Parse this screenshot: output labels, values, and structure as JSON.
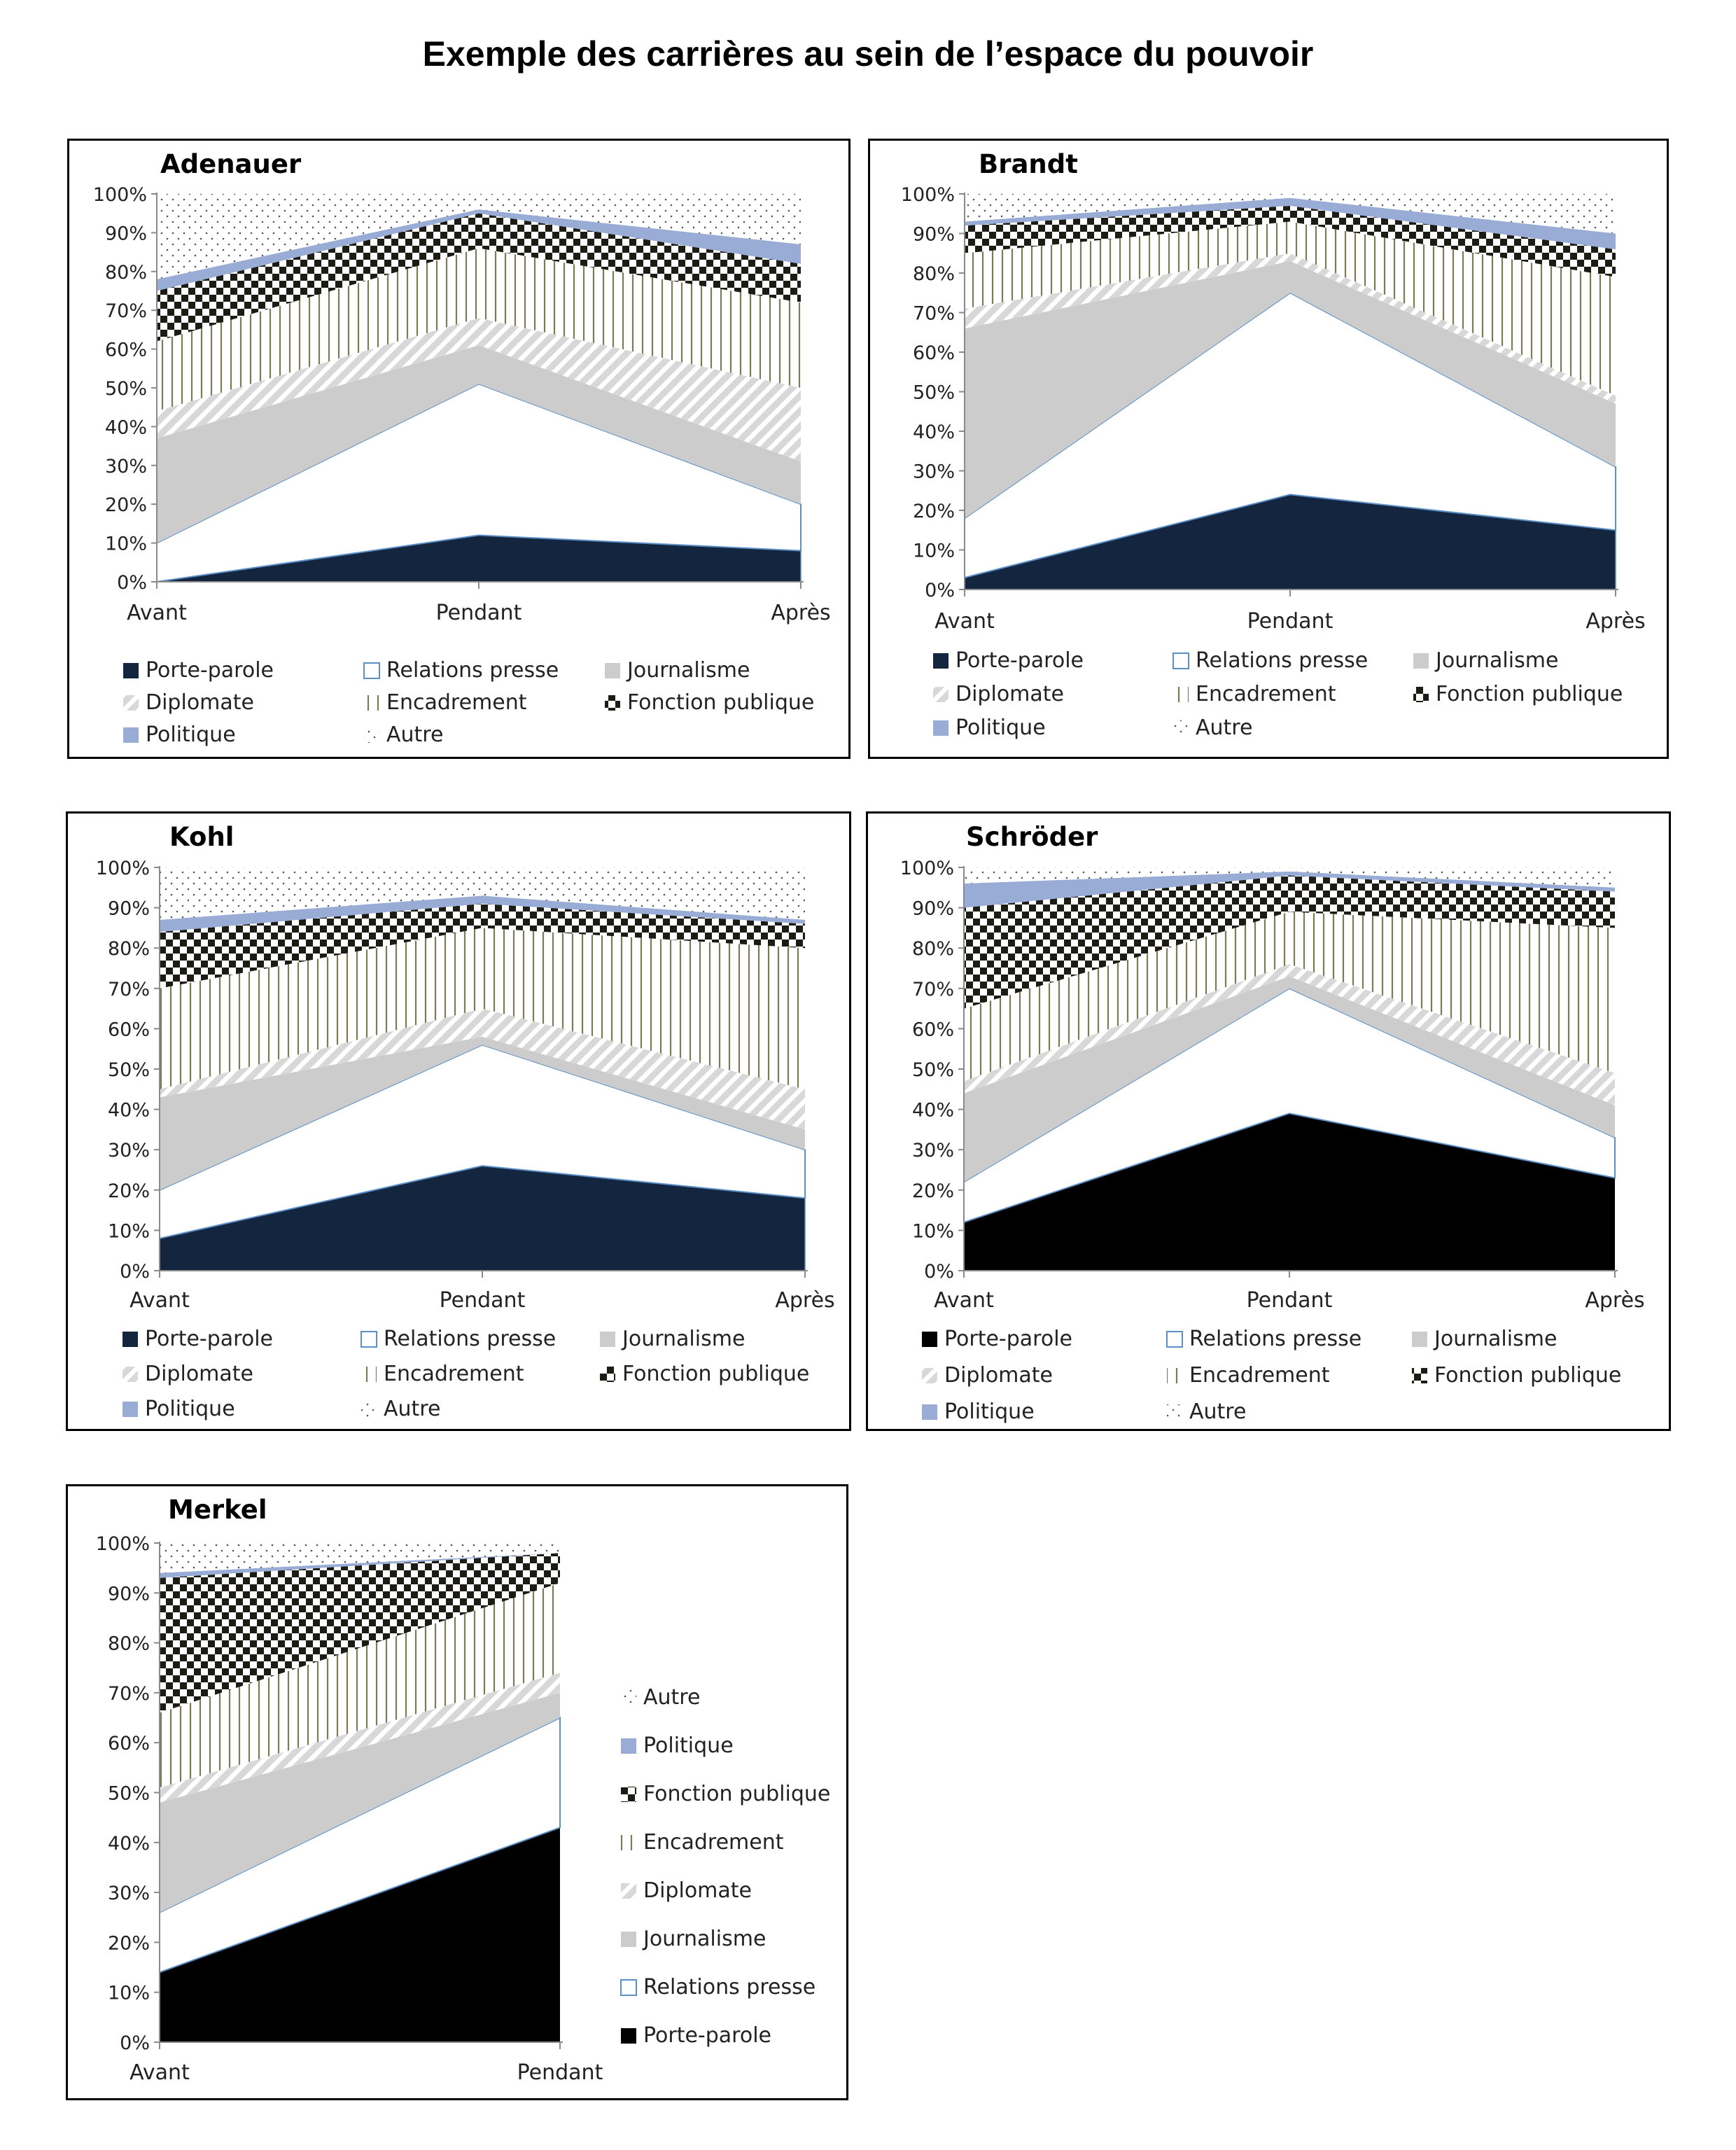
{
  "page_title": "Exemple des carrières au sein de l’espace du pouvoir",
  "colors": {
    "porte_parole": "#14253f",
    "porte_parole_black": "#000000",
    "relations_presse": "#ffffff",
    "relations_presse_edge": "#5b8fc6",
    "journalisme": "#cccccc",
    "diplomate": "#d8d8d8",
    "encadrement": "#7d7a55",
    "fonction_publique": "#1c1c14",
    "politique": "#98acd6",
    "autre": "#555555"
  },
  "chart_data": [
    {
      "id": "adenauer",
      "type": "area",
      "stacked": true,
      "title": "Adenauer",
      "categories": [
        "Avant",
        "Pendant",
        "Après"
      ],
      "ylim": [
        0,
        100
      ],
      "yticks": [
        "0%",
        "10%",
        "20%",
        "30%",
        "40%",
        "50%",
        "60%",
        "70%",
        "80%",
        "90%",
        "100%"
      ],
      "legend_position": "bottom",
      "legend": [
        "Porte-parole",
        "Relations presse",
        "Journalisme",
        "Diplomate",
        "Encadrement",
        "Fonction publique",
        "Politique",
        "Autre"
      ],
      "series": [
        {
          "name": "Porte-parole",
          "key": "porte_parole",
          "values": [
            0,
            12,
            8
          ]
        },
        {
          "name": "Relations presse",
          "key": "relations_presse",
          "values": [
            10,
            39,
            12
          ]
        },
        {
          "name": "Journalisme",
          "key": "journalisme",
          "values": [
            27,
            10,
            11
          ]
        },
        {
          "name": "Diplomate",
          "key": "diplomate",
          "values": [
            7,
            7,
            19
          ]
        },
        {
          "name": "Encadrement",
          "key": "encadrement",
          "values": [
            18,
            18,
            22
          ]
        },
        {
          "name": "Fonction publique",
          "key": "fonction_publique",
          "values": [
            13,
            9,
            10
          ]
        },
        {
          "name": "Politique",
          "key": "politique",
          "values": [
            3,
            1,
            5
          ]
        },
        {
          "name": "Autre",
          "key": "autre",
          "values": [
            22,
            4,
            13
          ]
        }
      ]
    },
    {
      "id": "brandt",
      "type": "area",
      "stacked": true,
      "title": "Brandt",
      "categories": [
        "Avant",
        "Pendant",
        "Après"
      ],
      "ylim": [
        0,
        100
      ],
      "yticks": [
        "0%",
        "10%",
        "20%",
        "30%",
        "40%",
        "50%",
        "60%",
        "70%",
        "80%",
        "90%",
        "100%"
      ],
      "legend_position": "bottom",
      "legend": [
        "Porte-parole",
        "Relations presse",
        "Journalisme",
        "Diplomate",
        "Encadrement",
        "Fonction publique",
        "Politique",
        "Autre"
      ],
      "series": [
        {
          "name": "Porte-parole",
          "key": "porte_parole",
          "values": [
            3,
            24,
            15
          ]
        },
        {
          "name": "Relations presse",
          "key": "relations_presse",
          "values": [
            15,
            51,
            16
          ]
        },
        {
          "name": "Journalisme",
          "key": "journalisme",
          "values": [
            48,
            8,
            16
          ]
        },
        {
          "name": "Diplomate",
          "key": "diplomate",
          "values": [
            5,
            2,
            2
          ]
        },
        {
          "name": "Encadrement",
          "key": "encadrement",
          "values": [
            14,
            8,
            30
          ]
        },
        {
          "name": "Fonction publique",
          "key": "fonction_publique",
          "values": [
            7,
            4,
            7
          ]
        },
        {
          "name": "Politique",
          "key": "politique",
          "values": [
            1,
            2,
            4
          ]
        },
        {
          "name": "Autre",
          "key": "autre",
          "values": [
            7,
            1,
            10
          ]
        }
      ]
    },
    {
      "id": "kohl",
      "type": "area",
      "stacked": true,
      "title": "Kohl",
      "categories": [
        "Avant",
        "Pendant",
        "Après"
      ],
      "ylim": [
        0,
        100
      ],
      "yticks": [
        "0%",
        "10%",
        "20%",
        "30%",
        "40%",
        "50%",
        "60%",
        "70%",
        "80%",
        "90%",
        "100%"
      ],
      "legend_position": "bottom",
      "legend": [
        "Porte-parole",
        "Relations presse",
        "Journalisme",
        "Diplomate",
        "Encadrement",
        "Fonction publique",
        "Politique",
        "Autre"
      ],
      "series": [
        {
          "name": "Porte-parole",
          "key": "porte_parole",
          "values": [
            8,
            26,
            18
          ]
        },
        {
          "name": "Relations presse",
          "key": "relations_presse",
          "values": [
            12,
            30,
            12
          ]
        },
        {
          "name": "Journalisme",
          "key": "journalisme",
          "values": [
            23,
            2,
            5
          ]
        },
        {
          "name": "Diplomate",
          "key": "diplomate",
          "values": [
            2,
            7,
            10
          ]
        },
        {
          "name": "Encadrement",
          "key": "encadrement",
          "values": [
            25,
            20,
            35
          ]
        },
        {
          "name": "Fonction publique",
          "key": "fonction_publique",
          "values": [
            14,
            6,
            6
          ]
        },
        {
          "name": "Politique",
          "key": "politique",
          "values": [
            3,
            2,
            1
          ]
        },
        {
          "name": "Autre",
          "key": "autre",
          "values": [
            13,
            7,
            13
          ]
        }
      ]
    },
    {
      "id": "schroeder",
      "type": "area",
      "stacked": true,
      "title": "Schröder",
      "categories": [
        "Avant",
        "Pendant",
        "Après"
      ],
      "ylim": [
        0,
        100
      ],
      "yticks": [
        "0%",
        "10%",
        "20%",
        "30%",
        "40%",
        "50%",
        "60%",
        "70%",
        "80%",
        "90%",
        "100%"
      ],
      "legend_position": "bottom",
      "legend": [
        "Porte-parole",
        "Relations presse",
        "Journalisme",
        "Diplomate",
        "Encadrement",
        "Fonction publique",
        "Politique",
        "Autre"
      ],
      "series": [
        {
          "name": "Porte-parole",
          "key": "porte_parole_black",
          "values": [
            12,
            39,
            23
          ]
        },
        {
          "name": "Relations presse",
          "key": "relations_presse",
          "values": [
            10,
            31,
            10
          ]
        },
        {
          "name": "Journalisme",
          "key": "journalisme",
          "values": [
            22,
            3,
            8
          ]
        },
        {
          "name": "Diplomate",
          "key": "diplomate",
          "values": [
            3,
            3,
            8
          ]
        },
        {
          "name": "Encadrement",
          "key": "encadrement",
          "values": [
            18,
            13,
            36
          ]
        },
        {
          "name": "Fonction publique",
          "key": "fonction_publique",
          "values": [
            25,
            9,
            9
          ]
        },
        {
          "name": "Politique",
          "key": "politique",
          "values": [
            6,
            1,
            1
          ]
        },
        {
          "name": "Autre",
          "key": "autre",
          "values": [
            4,
            1,
            5
          ]
        }
      ]
    },
    {
      "id": "merkel",
      "type": "area",
      "stacked": true,
      "title": "Merkel",
      "categories": [
        "Avant",
        "Pendant"
      ],
      "ylim": [
        0,
        100
      ],
      "yticks": [
        "0%",
        "10%",
        "20%",
        "30%",
        "40%",
        "50%",
        "60%",
        "70%",
        "80%",
        "90%",
        "100%"
      ],
      "legend_position": "right",
      "legend": [
        "Autre",
        "Politique",
        "Fonction publique",
        "Encadrement",
        "Diplomate",
        "Journalisme",
        "Relations presse",
        "Porte-parole"
      ],
      "series": [
        {
          "name": "Porte-parole",
          "key": "porte_parole_black",
          "values": [
            14,
            43
          ]
        },
        {
          "name": "Relations presse",
          "key": "relations_presse",
          "values": [
            12,
            22
          ]
        },
        {
          "name": "Journalisme",
          "key": "journalisme",
          "values": [
            22,
            5
          ]
        },
        {
          "name": "Diplomate",
          "key": "diplomate",
          "values": [
            3,
            4
          ]
        },
        {
          "name": "Encadrement",
          "key": "encadrement",
          "values": [
            15,
            18
          ]
        },
        {
          "name": "Fonction publique",
          "key": "fonction_publique",
          "values": [
            27,
            6
          ]
        },
        {
          "name": "Politique",
          "key": "politique",
          "values": [
            1,
            0
          ]
        },
        {
          "name": "Autre",
          "key": "autre",
          "values": [
            6,
            2
          ]
        }
      ]
    }
  ]
}
